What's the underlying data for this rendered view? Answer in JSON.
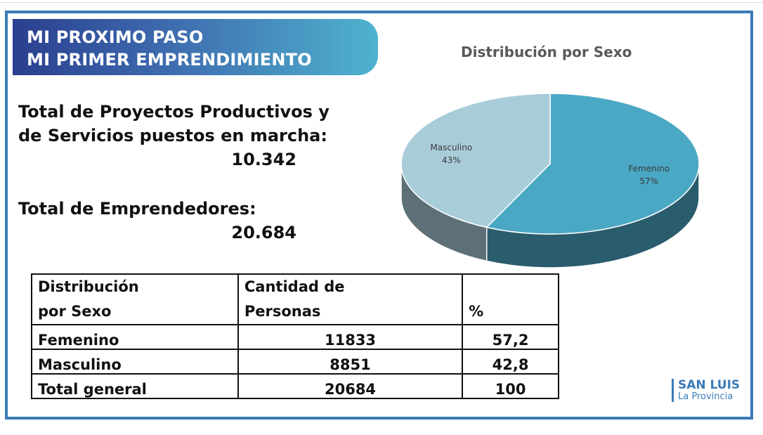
{
  "banner": {
    "line1": "MI PROXIMO PASO",
    "line2": "MI PRIMER EMPRENDIMIENTO"
  },
  "stats": {
    "projects_line1": "Total de Proyectos Productivos y",
    "projects_line2": "de Servicios puestos en marcha:",
    "projects_value": "10.342",
    "entrepreneurs_label": "Total de Emprendedores:",
    "entrepreneurs_value": "20.684"
  },
  "chart_data": {
    "type": "pie",
    "title": "Distribución por Sexo",
    "categories": [
      "Femenino",
      "Masculino"
    ],
    "values": [
      57,
      43
    ],
    "labels": [
      "57%",
      "43%"
    ],
    "colors": [
      "#4aa8c4",
      "#a9ccd9"
    ]
  },
  "table": {
    "headers": [
      [
        "Distribución",
        "por Sexo"
      ],
      [
        "Cantidad de",
        "Personas"
      ],
      [
        "",
        "%"
      ]
    ],
    "rows": [
      [
        "Femenino",
        "11833",
        "57,2"
      ],
      [
        "Masculino",
        "8851",
        "42,8"
      ],
      [
        "Total general",
        "20684",
        "100"
      ]
    ]
  },
  "logo": {
    "main": "SAN LUIS",
    "sub": "La Provincia"
  }
}
